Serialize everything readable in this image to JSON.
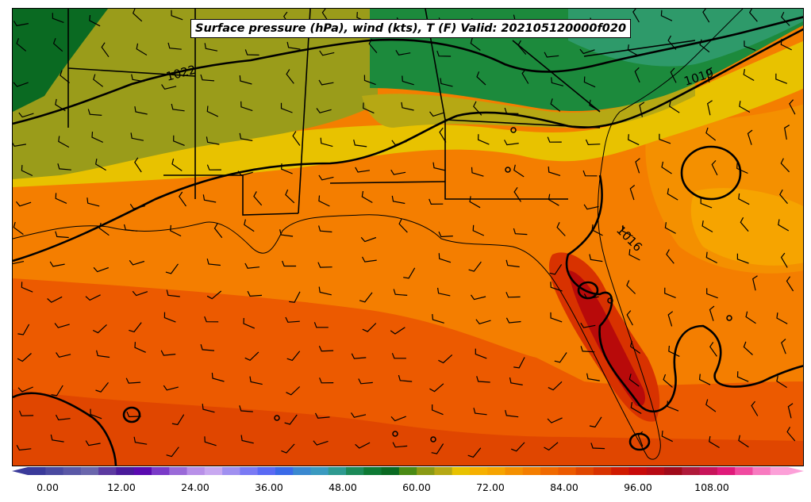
{
  "map": {
    "title": "Surface pressure (hPa), wind (kts), T (F) Valid: 202105120000f020",
    "isobar_labels": [
      "1022",
      "1019",
      "1016"
    ],
    "fill_colors": {
      "cool_green_dark": "#0a6a22",
      "green": "#1c8a3c",
      "teal": "#2e9a6a",
      "olive": "#9a9c1a",
      "olive_light": "#b6a814",
      "yellow": "#e8c200",
      "orange_light": "#f6a400",
      "orange": "#f47e00",
      "orange_red": "#ec5a00",
      "red": "#d83200",
      "dark_red": "#b80a0a"
    }
  },
  "colorbar": {
    "tick_labels": [
      "0.00",
      "12.00",
      "24.00",
      "36.00",
      "48.00",
      "60.00",
      "72.00",
      "84.00",
      "96.00",
      "108.00"
    ],
    "colors": [
      "#3a3a9a",
      "#4a4aa0",
      "#5a58a6",
      "#6a66ac",
      "#5c3aa0",
      "#4a1a9a",
      "#5a0ab0",
      "#7a3ac8",
      "#9a6ad8",
      "#b890e8",
      "#c8a8f0",
      "#a090f0",
      "#7a7af4",
      "#5a6af4",
      "#3a6ae8",
      "#3a88d0",
      "#3a9ac0",
      "#2e9a90",
      "#1c8a58",
      "#0e7a34",
      "#0a6a22",
      "#4a8a14",
      "#8a9a14",
      "#b6a814",
      "#e8c200",
      "#f6b000",
      "#f6a400",
      "#f49000",
      "#f47e00",
      "#f06a00",
      "#ec5a00",
      "#e04600",
      "#d83200",
      "#d01a00",
      "#c80a0a",
      "#b80a14",
      "#a00a1a",
      "#b01a3a",
      "#c8145a",
      "#e01a7a",
      "#f04aa0",
      "#f87ac0",
      "#fca0d8"
    ]
  }
}
